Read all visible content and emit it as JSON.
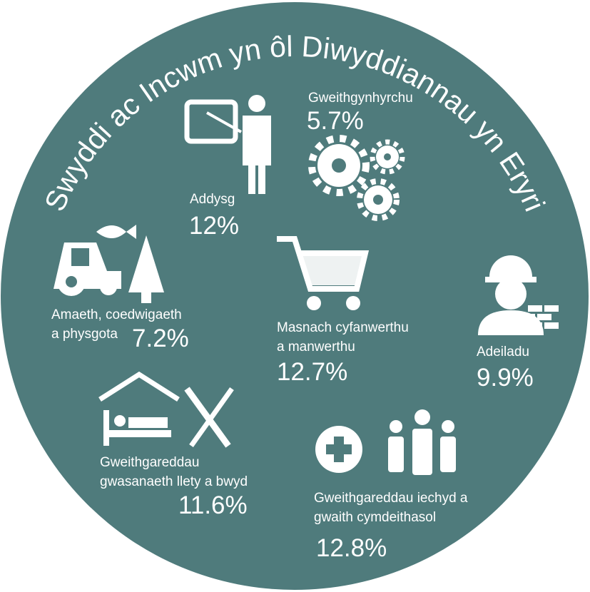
{
  "title": "Swyddi ac Incwm yn ôl Diwyddiannau yn Eryri",
  "sectors": [
    {
      "lines": [
        "Gweithgynhyrchu"
      ],
      "value": "5.7%"
    },
    {
      "lines": [
        "Addysg"
      ],
      "value": "12%"
    },
    {
      "lines": [
        "Amaeth, coedwigaeth",
        "a physgota"
      ],
      "value": "7.2%"
    },
    {
      "lines": [
        "Masnach cyfanwerthu",
        "a manwerthu"
      ],
      "value": "12.7%"
    },
    {
      "lines": [
        "Adeiladu"
      ],
      "value": "9.9%"
    },
    {
      "lines": [
        "Gweithgareddau",
        "gwasanaeth llety a bwyd"
      ],
      "value": "11.6%"
    },
    {
      "lines": [
        "Gweithgareddau iechyd a",
        "gwaith cymdeithasol"
      ],
      "value": "12.8%"
    }
  ]
}
